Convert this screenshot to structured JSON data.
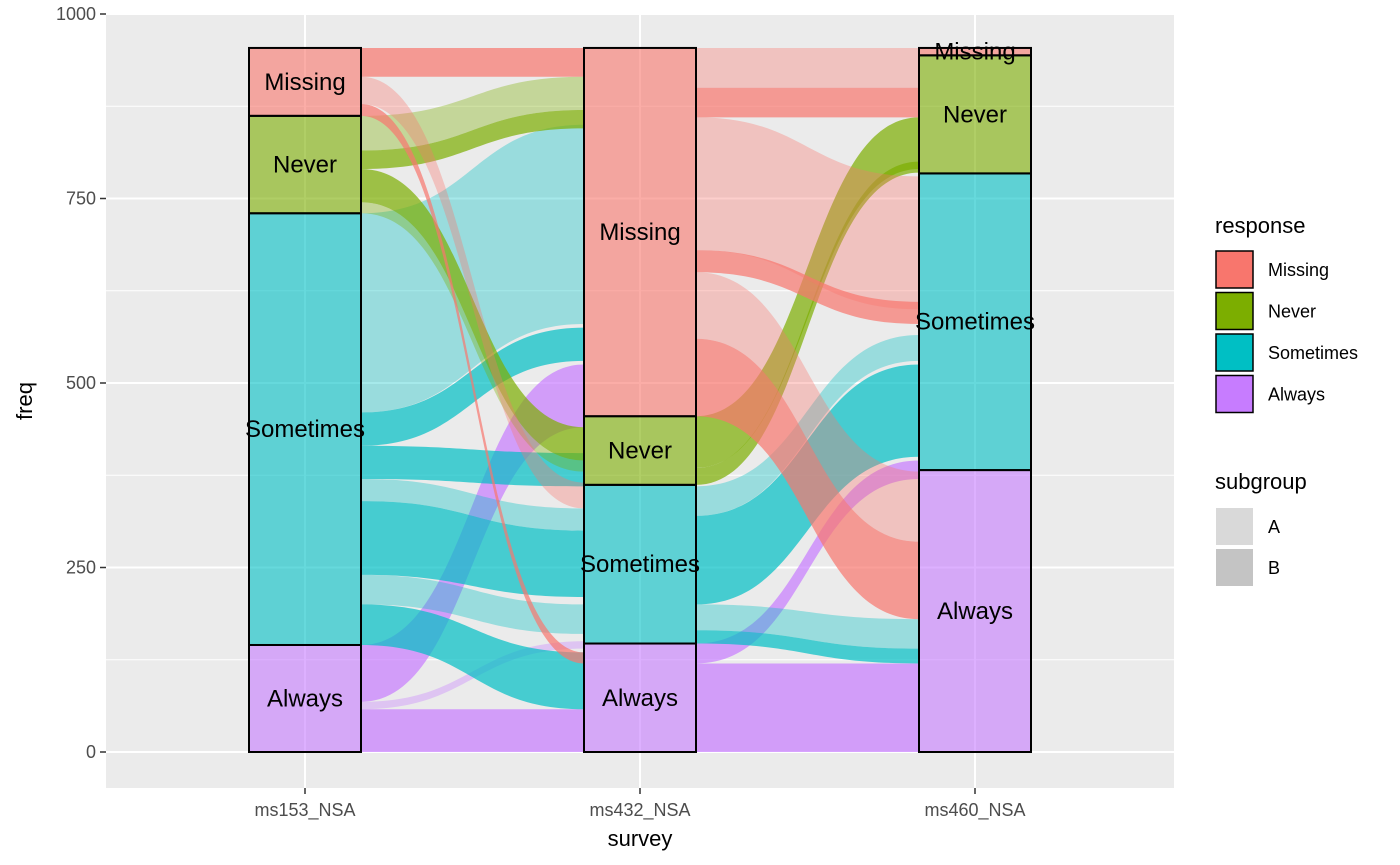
{
  "chart_data": {
    "type": "alluvial",
    "xlabel": "survey",
    "ylabel": "freq",
    "ylim": [
      0,
      1000
    ],
    "y_ticks": [
      0,
      250,
      500,
      750,
      1000
    ],
    "axes": [
      "ms153_NSA",
      "ms432_NSA",
      "ms460_NSA"
    ],
    "grid": true,
    "legend_placement": "right",
    "legend": {
      "response": {
        "title": "response",
        "items": [
          {
            "label": "Missing",
            "color": "#F8766D"
          },
          {
            "label": "Never",
            "color": "#7CAE00"
          },
          {
            "label": "Sometimes",
            "color": "#00BFC4"
          },
          {
            "label": "Always",
            "color": "#C77CFF"
          }
        ]
      },
      "subgroup": {
        "title": "subgroup",
        "items": [
          {
            "label": "A",
            "color": "#d9d9d9"
          },
          {
            "label": "B",
            "color": "#c4c4c4"
          }
        ]
      }
    },
    "strata": [
      {
        "axis": "ms153_NSA",
        "levels": [
          {
            "label": "Always",
            "value": 145
          },
          {
            "label": "Sometimes",
            "value": 585
          },
          {
            "label": "Never",
            "value": 132
          },
          {
            "label": "Missing",
            "value": 92
          }
        ]
      },
      {
        "axis": "ms432_NSA",
        "levels": [
          {
            "label": "Always",
            "value": 147
          },
          {
            "label": "Sometimes",
            "value": 215
          },
          {
            "label": "Never",
            "value": 93
          },
          {
            "label": "Missing",
            "value": 499
          }
        ]
      },
      {
        "axis": "ms460_NSA",
        "levels": [
          {
            "label": "Always",
            "value": 382
          },
          {
            "label": "Sometimes",
            "value": 402
          },
          {
            "label": "Never",
            "value": 160
          },
          {
            "label": "Missing",
            "value": 10
          }
        ]
      }
    ],
    "flows": [
      {
        "from": "ms153_NSA",
        "to": "ms432_NSA",
        "response": "Always",
        "y0": [
          0,
          58
        ],
        "y1": [
          0,
          58
        ],
        "subgroup": "B"
      },
      {
        "from": "ms153_NSA",
        "to": "ms432_NSA",
        "response": "Always",
        "y0": [
          58,
          68
        ],
        "y1": [
          140,
          150
        ],
        "subgroup": "A"
      },
      {
        "from": "ms153_NSA",
        "to": "ms432_NSA",
        "response": "Always",
        "y0": [
          68,
          145
        ],
        "y1": [
          440,
          525
        ],
        "subgroup": "B"
      },
      {
        "from": "ms153_NSA",
        "to": "ms432_NSA",
        "response": "Sometimes",
        "y0": [
          145,
          200
        ],
        "y1": [
          58,
          135
        ],
        "subgroup": "B"
      },
      {
        "from": "ms153_NSA",
        "to": "ms432_NSA",
        "response": "Sometimes",
        "y0": [
          200,
          240
        ],
        "y1": [
          160,
          200
        ],
        "subgroup": "A"
      },
      {
        "from": "ms153_NSA",
        "to": "ms432_NSA",
        "response": "Sometimes",
        "y0": [
          240,
          340
        ],
        "y1": [
          210,
          300
        ],
        "subgroup": "B"
      },
      {
        "from": "ms153_NSA",
        "to": "ms432_NSA",
        "response": "Sometimes",
        "y0": [
          340,
          370
        ],
        "y1": [
          300,
          330
        ],
        "subgroup": "A"
      },
      {
        "from": "ms153_NSA",
        "to": "ms432_NSA",
        "response": "Sometimes",
        "y0": [
          370,
          415
        ],
        "y1": [
          360,
          405
        ],
        "subgroup": "B"
      },
      {
        "from": "ms153_NSA",
        "to": "ms432_NSA",
        "response": "Sometimes",
        "y0": [
          415,
          460
        ],
        "y1": [
          530,
          575
        ],
        "subgroup": "B"
      },
      {
        "from": "ms153_NSA",
        "to": "ms432_NSA",
        "response": "Sometimes",
        "y0": [
          460,
          730
        ],
        "y1": [
          580,
          850
        ],
        "subgroup": "A"
      },
      {
        "from": "ms153_NSA",
        "to": "ms432_NSA",
        "response": "Never",
        "y0": [
          730,
          745
        ],
        "y1": [
          380,
          395
        ],
        "subgroup": "A"
      },
      {
        "from": "ms153_NSA",
        "to": "ms432_NSA",
        "response": "Never",
        "y0": [
          745,
          790
        ],
        "y1": [
          395,
          440
        ],
        "subgroup": "B"
      },
      {
        "from": "ms153_NSA",
        "to": "ms432_NSA",
        "response": "Never",
        "y0": [
          790,
          815
        ],
        "y1": [
          845,
          870
        ],
        "subgroup": "B"
      },
      {
        "from": "ms153_NSA",
        "to": "ms432_NSA",
        "response": "Never",
        "y0": [
          815,
          862
        ],
        "y1": [
          870,
          915
        ],
        "subgroup": "A"
      },
      {
        "from": "ms153_NSA",
        "to": "ms432_NSA",
        "response": "Missing",
        "y0": [
          862,
          878
        ],
        "y1": [
          120,
          135
        ],
        "subgroup": "B"
      },
      {
        "from": "ms153_NSA",
        "to": "ms432_NSA",
        "response": "Missing",
        "y0": [
          878,
          915
        ],
        "y1": [
          330,
          365
        ],
        "subgroup": "A"
      },
      {
        "from": "ms153_NSA",
        "to": "ms432_NSA",
        "response": "Missing",
        "y0": [
          915,
          954
        ],
        "y1": [
          915,
          954
        ],
        "subgroup": "B"
      },
      {
        "from": "ms432_NSA",
        "to": "ms460_NSA",
        "response": "Always",
        "y0": [
          0,
          120
        ],
        "y1": [
          0,
          120
        ],
        "subgroup": "B"
      },
      {
        "from": "ms432_NSA",
        "to": "ms460_NSA",
        "response": "Always",
        "y0": [
          120,
          147
        ],
        "y1": [
          370,
          395
        ],
        "subgroup": "B"
      },
      {
        "from": "ms432_NSA",
        "to": "ms460_NSA",
        "response": "Sometimes",
        "y0": [
          147,
          165
        ],
        "y1": [
          120,
          140
        ],
        "subgroup": "B"
      },
      {
        "from": "ms432_NSA",
        "to": "ms460_NSA",
        "response": "Sometimes",
        "y0": [
          165,
          200
        ],
        "y1": [
          140,
          180
        ],
        "subgroup": "A"
      },
      {
        "from": "ms432_NSA",
        "to": "ms460_NSA",
        "response": "Sometimes",
        "y0": [
          200,
          320
        ],
        "y1": [
          400,
          525
        ],
        "subgroup": "B"
      },
      {
        "from": "ms432_NSA",
        "to": "ms460_NSA",
        "response": "Sometimes",
        "y0": [
          320,
          360
        ],
        "y1": [
          530,
          565
        ],
        "subgroup": "A"
      },
      {
        "from": "ms432_NSA",
        "to": "ms460_NSA",
        "response": "Never",
        "y0": [
          362,
          385
        ],
        "y1": [
          785,
          800
        ],
        "subgroup": "B"
      },
      {
        "from": "ms432_NSA",
        "to": "ms460_NSA",
        "response": "Never",
        "y0": [
          385,
          455
        ],
        "y1": [
          790,
          860
        ],
        "subgroup": "B"
      },
      {
        "from": "ms432_NSA",
        "to": "ms460_NSA",
        "response": "Missing",
        "y0": [
          455,
          560
        ],
        "y1": [
          180,
          285
        ],
        "subgroup": "B"
      },
      {
        "from": "ms432_NSA",
        "to": "ms460_NSA",
        "response": "Missing",
        "y0": [
          560,
          650
        ],
        "y1": [
          285,
          380
        ],
        "subgroup": "A"
      },
      {
        "from": "ms432_NSA",
        "to": "ms460_NSA",
        "response": "Missing",
        "y0": [
          650,
          680
        ],
        "y1": [
          580,
          610
        ],
        "subgroup": "B"
      },
      {
        "from": "ms432_NSA",
        "to": "ms460_NSA",
        "response": "Missing",
        "y0": [
          680,
          860
        ],
        "y1": [
          600,
          780
        ],
        "subgroup": "A"
      },
      {
        "from": "ms432_NSA",
        "to": "ms460_NSA",
        "response": "Missing",
        "y0": [
          860,
          900
        ],
        "y1": [
          860,
          900
        ],
        "subgroup": "B"
      },
      {
        "from": "ms432_NSA",
        "to": "ms460_NSA",
        "response": "Missing",
        "y0": [
          900,
          954
        ],
        "y1": [
          900,
          954
        ],
        "subgroup": "A"
      }
    ]
  }
}
